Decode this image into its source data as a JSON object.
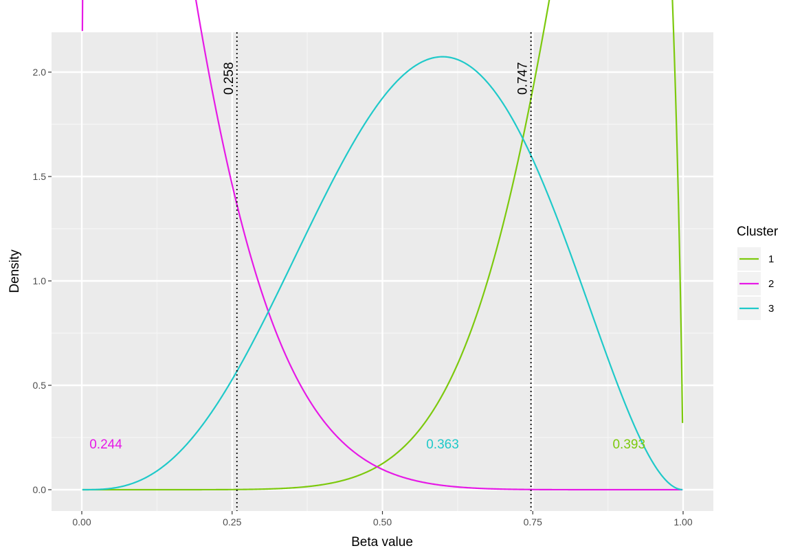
{
  "chart_data": {
    "type": "line",
    "title": "",
    "xlabel": "Beta value",
    "ylabel": "Density",
    "xlim": [
      -0.1,
      1.05
    ],
    "ylim": [
      -0.1,
      2.2
    ],
    "x_ticks": [
      0,
      0.25,
      0.5,
      0.75,
      1.0
    ],
    "x_tick_labels": [
      "0.00",
      "0.25",
      "0.50",
      "0.75",
      "1.00"
    ],
    "y_ticks": [
      0,
      0.5,
      1.0,
      1.5,
      2.0
    ],
    "y_tick_labels": [
      "0.0",
      "0.5",
      "1.0",
      "1.5",
      "2.0"
    ],
    "grid": true,
    "legend": {
      "title": "Cluster",
      "placement": "right"
    },
    "series": [
      {
        "name": "1",
        "color": "#7cc90d",
        "beta_a": 9.0,
        "beta_b": 1.74,
        "annotation": {
          "text": "0.393",
          "x": 0.91,
          "y": 0.22
        }
      },
      {
        "name": "2",
        "color": "#e619e6",
        "beta_a": 1.3,
        "beta_b": 8.2,
        "annotation": {
          "text": "0.244",
          "x": 0.04,
          "y": 0.22
        }
      },
      {
        "name": "3",
        "color": "#1fc9c9",
        "beta_a": 4.0,
        "beta_b": 3.0,
        "annotation": {
          "text": "0.363",
          "x": 0.6,
          "y": 0.22
        }
      }
    ],
    "vertical_lines": [
      {
        "x": 0.258,
        "label": "0.258"
      },
      {
        "x": 0.747,
        "label": "0.747"
      }
    ]
  }
}
